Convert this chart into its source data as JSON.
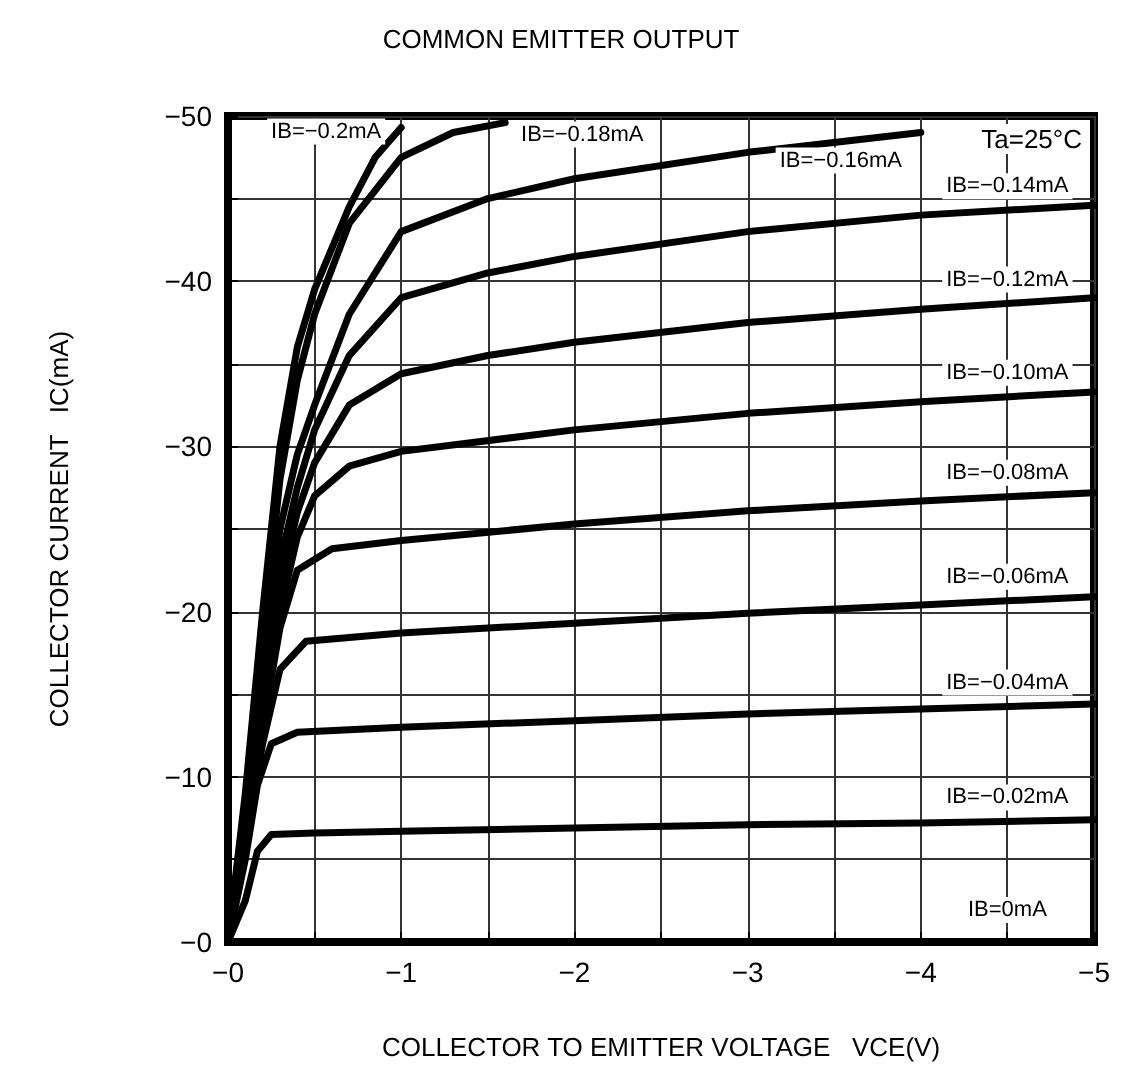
{
  "chart_data": {
    "type": "line",
    "title": "COMMON EMITTER OUTPUT",
    "xlabel": "COLLECTOR TO EMITTER VOLTAGE   VCE(V)",
    "ylabel": "COLLECTOR CURRENT   IC(mA)",
    "xlim": [
      0,
      -5
    ],
    "ylim": [
      0,
      -50
    ],
    "xticks": [
      {
        "value": 0,
        "label": "−0"
      },
      {
        "value": -0.5,
        "label": null
      },
      {
        "value": -1,
        "label": "−1"
      },
      {
        "value": -1.5,
        "label": null
      },
      {
        "value": -2,
        "label": "−2"
      },
      {
        "value": -2.5,
        "label": null
      },
      {
        "value": -3,
        "label": "−3"
      },
      {
        "value": -3.5,
        "label": null
      },
      {
        "value": -4,
        "label": "−4"
      },
      {
        "value": -4.5,
        "label": null
      },
      {
        "value": -5,
        "label": "−5"
      }
    ],
    "yticks": [
      {
        "value": 0,
        "label": "−0"
      },
      {
        "value": -5,
        "label": null
      },
      {
        "value": -10,
        "label": "−10"
      },
      {
        "value": -15,
        "label": null
      },
      {
        "value": -20,
        "label": "−20"
      },
      {
        "value": -25,
        "label": null
      },
      {
        "value": -30,
        "label": "−30"
      },
      {
        "value": -35,
        "label": null
      },
      {
        "value": -40,
        "label": "−40"
      },
      {
        "value": -45,
        "label": null
      },
      {
        "value": -50,
        "label": "−50"
      }
    ],
    "grid": true,
    "marker": "none",
    "line_style": "solid",
    "series": [
      {
        "name": "IB=−0.02mA",
        "color": "#000000",
        "x": [
          0,
          -0.1,
          -0.17,
          -0.25,
          -0.5,
          -1,
          -2,
          -3,
          -4,
          -5
        ],
        "values": [
          0,
          -2.5,
          -5.5,
          -6.5,
          -6.6,
          -6.7,
          -6.9,
          -7.1,
          -7.2,
          -7.4
        ]
      },
      {
        "name": "IB=−0.04mA",
        "color": "#000000",
        "x": [
          0,
          -0.1,
          -0.17,
          -0.25,
          -0.4,
          -1,
          -2,
          -3,
          -4,
          -5
        ],
        "values": [
          0,
          -5,
          -9.5,
          -12,
          -12.7,
          -13,
          -13.4,
          -13.8,
          -14.1,
          -14.4
        ]
      },
      {
        "name": "IB=−0.06mA",
        "color": "#000000",
        "x": [
          0,
          -0.1,
          -0.2,
          -0.3,
          -0.45,
          -1,
          -2,
          -3,
          -4,
          -5
        ],
        "values": [
          0,
          -6,
          -12,
          -16.5,
          -18.2,
          -18.7,
          -19.3,
          -19.9,
          -20.4,
          -20.9
        ]
      },
      {
        "name": "IB=−0.08mA",
        "color": "#000000",
        "x": [
          0,
          -0.1,
          -0.2,
          -0.3,
          -0.4,
          -0.6,
          -1,
          -2,
          -3,
          -4,
          -5
        ],
        "values": [
          0,
          -6.5,
          -13,
          -19,
          -22.5,
          -23.8,
          -24.3,
          -25.3,
          -26.1,
          -26.7,
          -27.2
        ]
      },
      {
        "name": "IB=−0.10mA",
        "color": "#000000",
        "x": [
          0,
          -0.1,
          -0.2,
          -0.3,
          -0.4,
          -0.5,
          -0.7,
          -1,
          -2,
          -3,
          -4,
          -5
        ],
        "values": [
          0,
          -7,
          -14,
          -20,
          -24.5,
          -27,
          -28.8,
          -29.7,
          -31,
          -32,
          -32.7,
          -33.3
        ]
      },
      {
        "name": "IB=−0.12mA",
        "color": "#000000",
        "x": [
          0,
          -0.1,
          -0.2,
          -0.3,
          -0.4,
          -0.5,
          -0.7,
          -1,
          -1.5,
          -2,
          -3,
          -4,
          -5
        ],
        "values": [
          0,
          -7.5,
          -15,
          -21.5,
          -26,
          -29,
          -32.5,
          -34.4,
          -35.5,
          -36.3,
          -37.5,
          -38.3,
          -39
        ]
      },
      {
        "name": "IB=−0.14mA",
        "color": "#000000",
        "x": [
          0,
          -0.1,
          -0.2,
          -0.3,
          -0.4,
          -0.5,
          -0.7,
          -1,
          -1.5,
          -2,
          -3,
          -4,
          -5
        ],
        "values": [
          0,
          -7.8,
          -16,
          -23,
          -27.5,
          -31,
          -35.5,
          -39,
          -40.5,
          -41.5,
          -43,
          -44,
          -44.6
        ]
      },
      {
        "name": "IB=−0.16mA",
        "color": "#000000",
        "x": [
          0,
          -0.1,
          -0.2,
          -0.3,
          -0.4,
          -0.5,
          -0.7,
          -1,
          -1.5,
          -2,
          -3,
          -4
        ],
        "values": [
          0,
          -8,
          -17,
          -25,
          -29.5,
          -32.5,
          -38,
          -43,
          -45,
          -46.2,
          -47.8,
          -49
        ]
      },
      {
        "name": "IB=−0.18mA",
        "color": "#000000",
        "x": [
          0,
          -0.1,
          -0.2,
          -0.3,
          -0.4,
          -0.5,
          -0.7,
          -1,
          -1.3,
          -1.6
        ],
        "values": [
          0,
          -8.5,
          -18,
          -28,
          -34,
          -38,
          -43.5,
          -47.5,
          -49,
          -49.6
        ]
      },
      {
        "name": "IB=−0.2mA",
        "color": "#000000",
        "x": [
          0,
          -0.1,
          -0.2,
          -0.3,
          -0.4,
          -0.5,
          -0.7,
          -0.85,
          -1
        ],
        "values": [
          0,
          -9,
          -20,
          -30,
          -36,
          -39.5,
          -44.5,
          -47.5,
          -49.3
        ]
      }
    ],
    "annotations": [
      "Ta=25°C",
      "IB=0mA"
    ]
  }
}
